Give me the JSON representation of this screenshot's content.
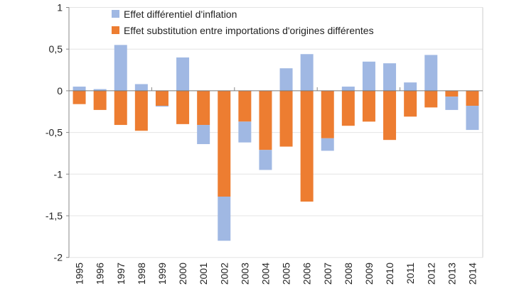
{
  "chart_data": {
    "type": "bar",
    "stacked": true,
    "title": "",
    "xlabel": "",
    "ylabel": "",
    "ylim": [
      -2,
      1
    ],
    "yticks": [
      1,
      0.5,
      0,
      -0.5,
      -1,
      -1.5,
      -2
    ],
    "ytick_labels": [
      "1",
      "0,5",
      "0",
      "-0,5",
      "-1",
      "-1,5",
      "-2"
    ],
    "grid": true,
    "legend": "top-left",
    "categories": [
      "1995",
      "1996",
      "1997",
      "1998",
      "1999",
      "2000",
      "2001",
      "2002",
      "2003",
      "2004",
      "2005",
      "2006",
      "2007",
      "2008",
      "2009",
      "2010",
      "2011",
      "2012",
      "2013",
      "2014"
    ],
    "series": [
      {
        "name": "Effet substitution entre importations d'origines différentes",
        "color": "#ED7D31",
        "values": [
          -0.16,
          -0.23,
          -0.41,
          -0.48,
          -0.18,
          -0.4,
          -0.41,
          -1.27,
          -0.37,
          -0.71,
          -0.67,
          -1.33,
          -0.57,
          -0.42,
          -0.37,
          -0.59,
          -0.31,
          -0.2,
          -0.07,
          -0.18
        ]
      },
      {
        "name": "Effet différentiel d'inflation",
        "color": "#A0B8E3",
        "values": [
          0.05,
          0.02,
          0.55,
          0.08,
          -0.01,
          0.4,
          -0.23,
          -0.53,
          -0.25,
          -0.24,
          0.27,
          0.44,
          -0.15,
          0.05,
          0.35,
          0.33,
          0.1,
          0.43,
          -0.16,
          -0.29
        ]
      }
    ]
  }
}
